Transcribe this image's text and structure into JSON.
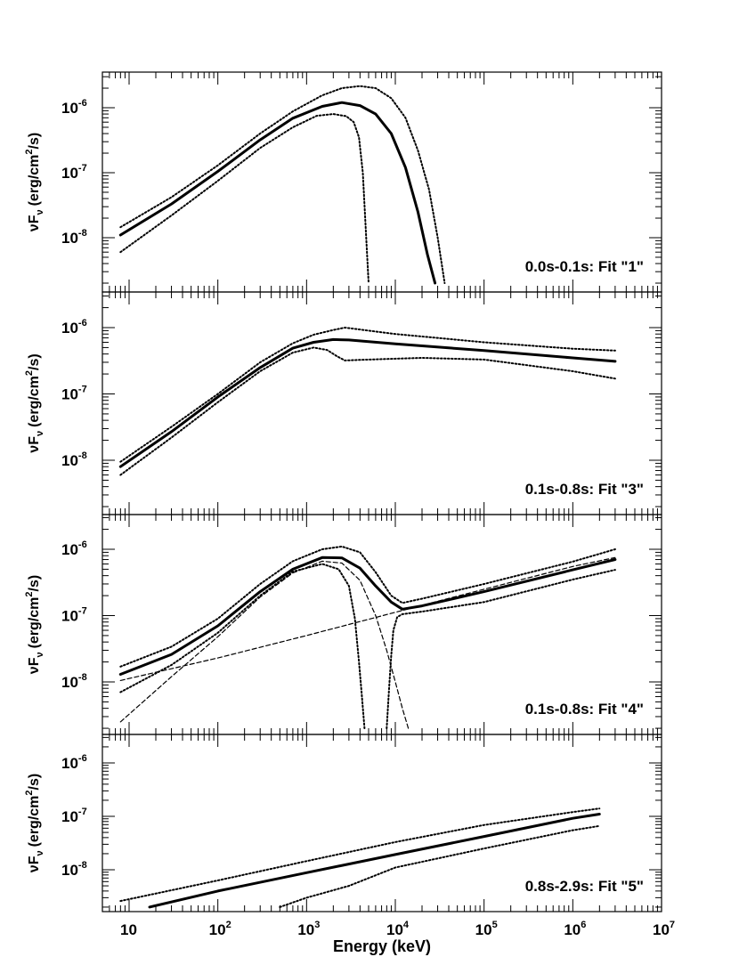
{
  "chart_data": [
    {
      "type": "line",
      "label": "0.0s-0.1s: Fit \"1\"",
      "ylabel": "νF_ν (erg/cm²/s)",
      "x_scale": "log",
      "y_scale": "log",
      "xlim": [
        5,
        10000000
      ],
      "ylim": [
        2e-09,
        4e-06
      ],
      "series": [
        {
          "style": "solid",
          "x": [
            8,
            30,
            100,
            300,
            700,
            1500,
            2500,
            4000,
            6000,
            9000,
            13000,
            18000,
            23000,
            28000
          ],
          "y": [
            1.1e-08,
            3.3e-08,
            1.05e-07,
            3.2e-07,
            6.9e-07,
            1.05e-06,
            1.2e-06,
            1.08e-06,
            8e-07,
            4e-07,
            1.2e-07,
            2.5e-08,
            5.5e-09,
            2e-09
          ]
        },
        {
          "style": "dotted",
          "x": [
            8,
            30,
            100,
            300,
            700,
            1500,
            2500,
            4000,
            6000,
            9000,
            13000,
            18000,
            24000,
            30000,
            36000
          ],
          "y": [
            1.45e-08,
            4.2e-08,
            1.3e-07,
            4e-07,
            8.8e-07,
            1.55e-06,
            2e-06,
            2.15e-06,
            2e-06,
            1.4e-06,
            7e-07,
            2.2e-07,
            5.5e-08,
            1e-08,
            2e-09
          ]
        },
        {
          "style": "dotted",
          "x": [
            8,
            30,
            100,
            300,
            700,
            1300,
            2000,
            2800,
            3400,
            3900,
            4300,
            4700,
            5000
          ],
          "y": [
            6e-09,
            2.2e-08,
            7.5e-08,
            2.4e-07,
            5e-07,
            7.5e-07,
            8e-07,
            7.4e-07,
            6e-07,
            3.5e-07,
            1e-07,
            1e-08,
            2e-09
          ]
        }
      ]
    },
    {
      "type": "line",
      "label": "0.1s-0.8s: Fit \"3\"",
      "ylabel": "νF_ν (erg/cm²/s)",
      "x_scale": "log",
      "y_scale": "log",
      "xlim": [
        5,
        10000000
      ],
      "ylim": [
        2e-09,
        4e-06
      ],
      "series": [
        {
          "style": "solid",
          "x": [
            8,
            30,
            100,
            300,
            700,
            1200,
            2000,
            3000,
            10000,
            100000,
            1000000,
            3000000
          ],
          "y": [
            8e-09,
            2.7e-08,
            9e-08,
            2.5e-07,
            4.9e-07,
            6e-07,
            6.6e-07,
            6.5e-07,
            5.7e-07,
            4.5e-07,
            3.5e-07,
            3.1e-07
          ]
        },
        {
          "style": "dotted",
          "x": [
            8,
            30,
            100,
            300,
            700,
            1200,
            2000,
            2700,
            10000,
            100000,
            1000000,
            3000000
          ],
          "y": [
            9.5e-09,
            3.2e-08,
            1e-07,
            3e-07,
            5.8e-07,
            7.8e-07,
            9.2e-07,
            1e-06,
            8e-07,
            6e-07,
            4.8e-07,
            4.5e-07
          ]
        },
        {
          "style": "dotted",
          "x": [
            8,
            30,
            100,
            300,
            700,
            1200,
            1700,
            2200,
            2700,
            5000,
            20000,
            100000,
            1000000,
            3000000
          ],
          "y": [
            6e-09,
            2.2e-08,
            7.5e-08,
            2.2e-07,
            4.2e-07,
            5e-07,
            4.6e-07,
            3.7e-07,
            3.2e-07,
            3.3e-07,
            3.5e-07,
            3.3e-07,
            2.2e-07,
            1.7e-07
          ]
        }
      ]
    },
    {
      "type": "line",
      "label": "0.1s-0.8s: Fit \"4\"",
      "ylabel": "νF_ν (erg/cm²/s)",
      "x_scale": "log",
      "y_scale": "log",
      "xlim": [
        5,
        10000000
      ],
      "ylim": [
        2e-09,
        4e-06
      ],
      "series": [
        {
          "style": "solid",
          "x": [
            8,
            30,
            100,
            300,
            700,
            1500,
            2500,
            4000,
            6000,
            9000,
            12000,
            20000,
            100000,
            1000000,
            3000000
          ],
          "y": [
            1.3e-08,
            2.6e-08,
            7e-08,
            2.3e-07,
            5e-07,
            7.5e-07,
            7.4e-07,
            5.2e-07,
            2.8e-07,
            1.6e-07,
            1.25e-07,
            1.4e-07,
            2.3e-07,
            4.9e-07,
            7e-07
          ]
        },
        {
          "style": "dotted",
          "x": [
            8,
            30,
            100,
            300,
            700,
            1500,
            2500,
            4000,
            6000,
            9000,
            12000,
            20000,
            100000,
            1000000,
            3000000
          ],
          "y": [
            1.7e-08,
            3.4e-08,
            9e-08,
            3e-07,
            6.6e-07,
            1e-06,
            1.1e-06,
            9e-07,
            4.5e-07,
            2e-07,
            1.55e-07,
            1.8e-07,
            3e-07,
            6.5e-07,
            1e-06
          ]
        },
        {
          "style": "dotted",
          "x": [
            8,
            30,
            100,
            300,
            700,
            1500,
            2300,
            3000,
            3500,
            3900,
            4200,
            4500
          ],
          "y": [
            7e-09,
            1.8e-08,
            5.5e-08,
            2e-07,
            4.6e-07,
            6e-07,
            5e-07,
            2.8e-07,
            9e-08,
            2e-08,
            6e-09,
            2e-09
          ]
        },
        {
          "style": "dotted",
          "x": [
            8000,
            8500,
            9000,
            9500,
            10500,
            12000,
            20000,
            100000,
            1000000,
            3000000
          ],
          "y": [
            2e-09,
            8e-09,
            2.5e-08,
            6e-08,
            9.5e-08,
            1.05e-07,
            1.15e-07,
            1.6e-07,
            3.5e-07,
            4.9e-07
          ]
        },
        {
          "style": "dashed",
          "x": [
            8,
            100,
            1000,
            10000,
            100000,
            1000000,
            3000000
          ],
          "y": [
            1.05e-08,
            2.3e-08,
            5e-08,
            1.12e-07,
            2.5e-07,
            5.5e-07,
            7.5e-07
          ]
        },
        {
          "style": "dashed",
          "x": [
            8,
            30,
            100,
            300,
            700,
            1500,
            2500,
            4000,
            6000,
            8000,
            10000,
            12000,
            14000
          ],
          "y": [
            2.5e-09,
            1.2e-08,
            4.8e-08,
            1.9e-07,
            4.4e-07,
            6.6e-07,
            6.2e-07,
            3.4e-07,
            1e-07,
            3e-08,
            1e-08,
            4e-09,
            2e-09
          ]
        }
      ]
    },
    {
      "type": "line",
      "label": "0.8s-2.9s: Fit \"5\"",
      "ylabel": "νF_ν (erg/cm²/s)",
      "xlabel": "Energy (keV)",
      "x_scale": "log",
      "y_scale": "log",
      "xlim": [
        5,
        10000000
      ],
      "ylim": [
        2e-09,
        4e-06
      ],
      "series": [
        {
          "style": "solid",
          "x": [
            17,
            100,
            1000,
            10000,
            100000,
            1000000,
            2000000
          ],
          "y": [
            2e-09,
            4e-09,
            8.8e-09,
            1.93e-08,
            4.2e-08,
            9.2e-08,
            1.1e-07
          ]
        },
        {
          "style": "dotted",
          "x": [
            8,
            100,
            1000,
            10000,
            100000,
            1000000,
            2000000
          ],
          "y": [
            2.6e-09,
            6.3e-09,
            1.45e-08,
            3.3e-08,
            6.9e-08,
            1.2e-07,
            1.4e-07
          ]
        },
        {
          "style": "dotted",
          "x": [
            500,
            1000,
            3000,
            10000,
            100000,
            1000000,
            2000000
          ],
          "y": [
            2e-09,
            3e-09,
            5e-09,
            1.1e-08,
            2.5e-08,
            5.5e-08,
            6.6e-08
          ]
        }
      ]
    }
  ],
  "ytick_labels": [
    {
      "base": "10",
      "exp": "-8"
    },
    {
      "base": "10",
      "exp": "-7"
    },
    {
      "base": "10",
      "exp": "-6"
    }
  ],
  "xtick_labels": [
    {
      "base": "10",
      "exp": ""
    },
    {
      "base": "10",
      "exp": "2"
    },
    {
      "base": "10",
      "exp": "3"
    },
    {
      "base": "10",
      "exp": "4"
    },
    {
      "base": "10",
      "exp": "5"
    },
    {
      "base": "10",
      "exp": "6"
    },
    {
      "base": "10",
      "exp": "7"
    }
  ],
  "ylabel_parts": {
    "nu": "ν",
    "F": "F",
    "sub": "ν",
    "pre": "(erg/cm",
    "sup": "2",
    "post": "/s)"
  }
}
